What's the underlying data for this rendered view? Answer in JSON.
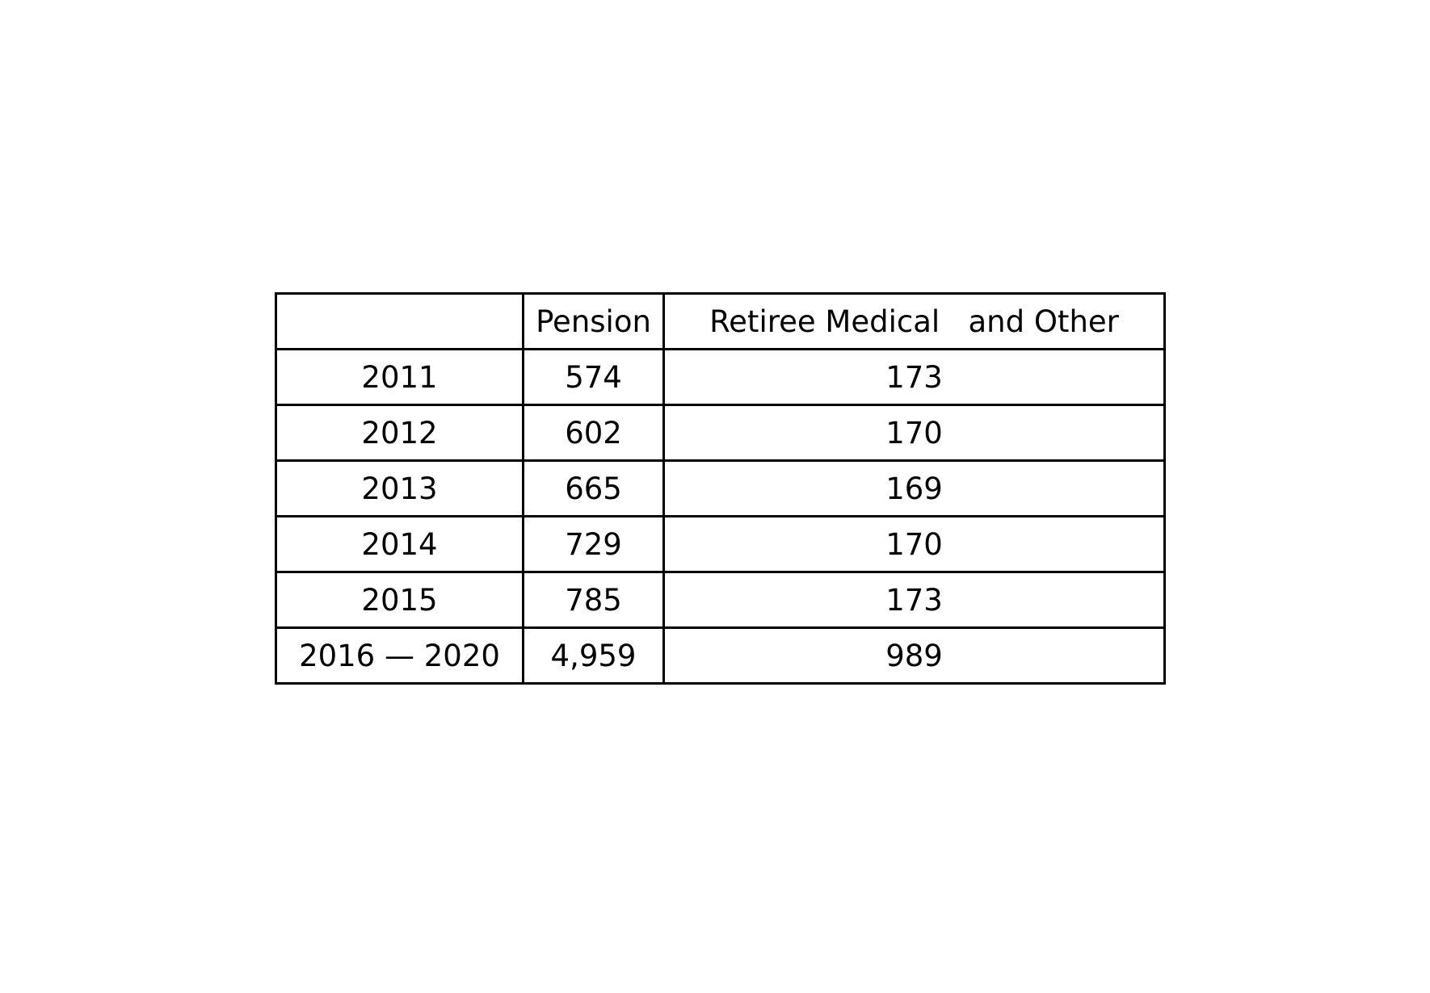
{
  "table": {
    "headers": [
      "",
      "Pension",
      "Retiree Medical   and Other"
    ],
    "rows": [
      [
        "2011",
        "574",
        "173"
      ],
      [
        "2012",
        "602",
        "170"
      ],
      [
        "2013",
        "665",
        "169"
      ],
      [
        "2014",
        "729",
        "170"
      ],
      [
        "2015",
        "785",
        "173"
      ],
      [
        "2016 — 2020",
        "4,959",
        "989"
      ]
    ]
  }
}
